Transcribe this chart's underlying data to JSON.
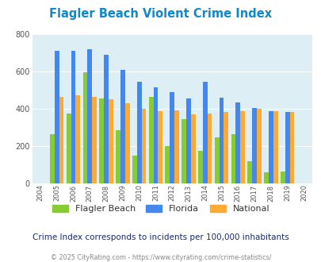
{
  "title": "Flagler Beach Violent Crime Index",
  "years": [
    2004,
    2005,
    2006,
    2007,
    2008,
    2009,
    2010,
    2011,
    2012,
    2013,
    2014,
    2015,
    2016,
    2017,
    2018,
    2019,
    2020
  ],
  "flagler_beach": [
    null,
    265,
    375,
    595,
    455,
    285,
    148,
    465,
    200,
    345,
    175,
    248,
    263,
    120,
    60,
    62,
    null
  ],
  "florida": [
    null,
    710,
    710,
    720,
    690,
    610,
    545,
    515,
    490,
    455,
    545,
    460,
    432,
    405,
    388,
    383,
    null
  ],
  "national": [
    null,
    465,
    472,
    465,
    452,
    428,
    400,
    388,
    390,
    368,
    375,
    383,
    388,
    400,
    388,
    383,
    null
  ],
  "colors": {
    "flagler_beach": "#88cc33",
    "florida": "#4488ee",
    "national": "#ffaa33"
  },
  "ylim": [
    0,
    800
  ],
  "yticks": [
    0,
    200,
    400,
    600,
    800
  ],
  "bg_color": "#ddeef5",
  "fig_bg": "#ffffff",
  "subtitle": "Crime Index corresponds to incidents per 100,000 inhabitants",
  "footer": "© 2025 CityRating.com - https://www.cityrating.com/crime-statistics/",
  "title_color": "#1188cc",
  "subtitle_color": "#1a2a6e",
  "footer_color": "#888888"
}
